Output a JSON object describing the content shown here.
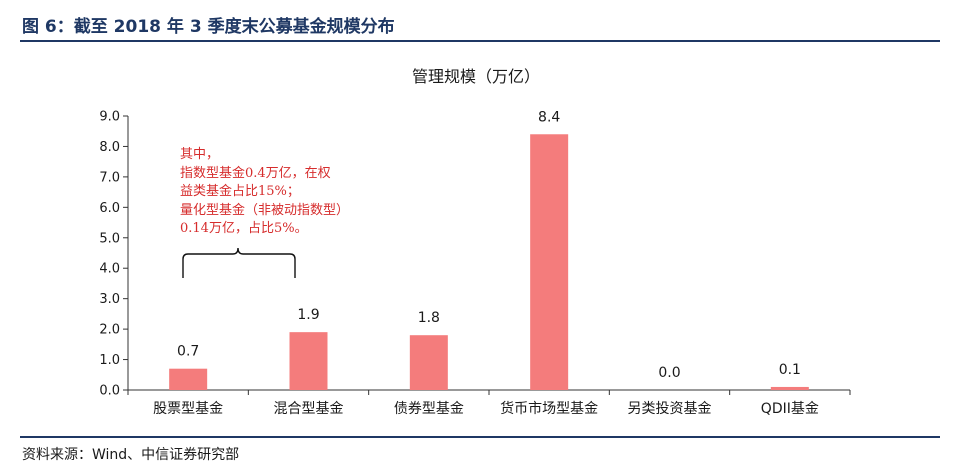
{
  "figure": {
    "title": "图 6：截至 2018 年 3 季度末公募基金规模分布",
    "source": "资料来源：Wind、中信证券研究部"
  },
  "annotation": {
    "lines": [
      "其中，",
      "指数型基金0.4万亿，在权",
      "益类基金占比15%；",
      "量化型基金（非被动指数型）",
      "0.14万亿，占比5%。"
    ]
  },
  "colors": {
    "bar": "#f47c7c",
    "annotation": "#d62c2c",
    "rule": "#1f3864"
  },
  "chart_data": {
    "type": "bar",
    "title": "管理规模（万亿）",
    "categories": [
      "股票型基金",
      "混合型基金",
      "债券型基金",
      "货币市场型基金",
      "另类投资基金",
      "QDII基金"
    ],
    "values": [
      0.7,
      1.9,
      1.8,
      8.4,
      0.0,
      0.1
    ],
    "value_labels": [
      "0.7",
      "1.9",
      "1.8",
      "8.4",
      "0.0",
      "0.1"
    ],
    "yticks": [
      "0.0",
      "1.0",
      "2.0",
      "3.0",
      "4.0",
      "5.0",
      "6.0",
      "7.0",
      "8.0",
      "9.0"
    ],
    "ylim": [
      0,
      9
    ],
    "xlabel": "",
    "ylabel": "",
    "grid": false,
    "legend": "none"
  }
}
